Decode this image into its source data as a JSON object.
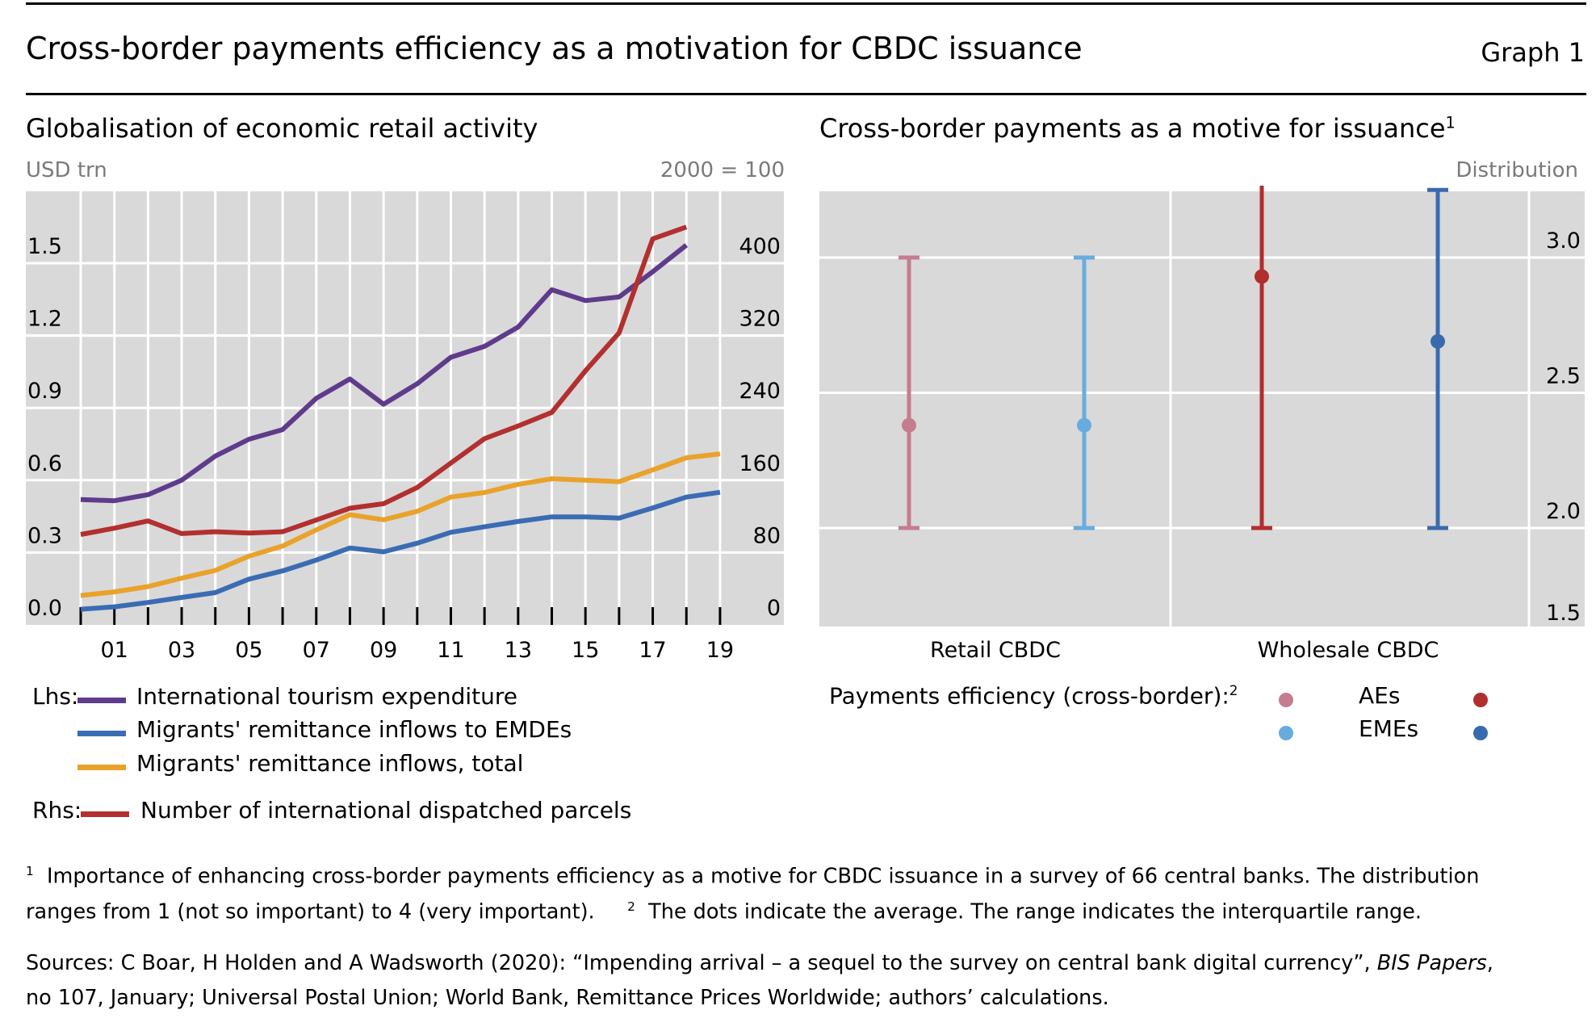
{
  "header": {
    "title": "Cross-border payments efficiency as a motivation for CBDC issuance",
    "graph_number": "Graph 1"
  },
  "chart_data": [
    {
      "type": "line",
      "title": "Globalisation of economic retail activity",
      "ylabel_left": "USD trn",
      "ylabel_right": "2000 = 100",
      "x": [
        "2000",
        "2001",
        "2002",
        "2003",
        "2004",
        "2005",
        "2006",
        "2007",
        "2008",
        "2009",
        "2010",
        "2011",
        "2012",
        "2013",
        "2014",
        "2015",
        "2016",
        "2017",
        "2018",
        "2019"
      ],
      "xtick_labels": [
        "01",
        "03",
        "05",
        "07",
        "09",
        "11",
        "13",
        "15",
        "17",
        "19"
      ],
      "xtick_years": [
        "2001",
        "2003",
        "2005",
        "2007",
        "2009",
        "2011",
        "2013",
        "2015",
        "2017",
        "2019"
      ],
      "ylim_left": [
        0,
        1.8
      ],
      "ylim_right": [
        0,
        480
      ],
      "yticks_left": [
        "0.0",
        "0.3",
        "0.6",
        "0.9",
        "1.2",
        "1.5"
      ],
      "yticks_right": [
        "0",
        "80",
        "160",
        "240",
        "320",
        "400"
      ],
      "grid": true,
      "legend_position": "bottom",
      "series": [
        {
          "name": "International tourism expenditure",
          "axis": "left",
          "group": "Lhs:",
          "color": "#5f3b8c",
          "values": [
            0.52,
            0.515,
            0.54,
            0.6,
            0.7,
            0.77,
            0.81,
            0.94,
            1.02,
            0.915,
            1.0,
            1.11,
            1.155,
            1.235,
            1.39,
            1.345,
            1.36,
            1.465,
            1.575,
            null
          ]
        },
        {
          "name": "Migrants' remittance inflows to EMDEs",
          "axis": "left",
          "group": "Lhs:",
          "color": "#3a6cb3",
          "values": [
            0.065,
            0.075,
            0.093,
            0.114,
            0.134,
            0.19,
            0.224,
            0.269,
            0.319,
            0.303,
            0.339,
            0.384,
            0.407,
            0.429,
            0.448,
            0.448,
            0.443,
            0.485,
            0.53,
            0.55
          ]
        },
        {
          "name": "Migrants' remittance inflows, total",
          "axis": "left",
          "group": "Lhs:",
          "color": "#e9a22a",
          "values": [
            0.122,
            0.137,
            0.159,
            0.194,
            0.226,
            0.285,
            0.327,
            0.394,
            0.457,
            0.436,
            0.471,
            0.53,
            0.549,
            0.583,
            0.606,
            0.6,
            0.594,
            0.643,
            0.693,
            0.709
          ]
        },
        {
          "name": "Number of international dispatched parcels",
          "axis": "right",
          "group": "Rhs:",
          "color": "#b2302f",
          "values": [
            100,
            107,
            115,
            101,
            103,
            101.5,
            103,
            116,
            129,
            134,
            152,
            179,
            206,
            220,
            235,
            281,
            323,
            427,
            440,
            null
          ]
        }
      ]
    },
    {
      "type": "errorbar",
      "title": "Cross-border payments as a motive for issuance",
      "title_footnote": "1",
      "ylabel_right": "Distribution",
      "ylim": [
        1.5,
        4.5
      ],
      "yticks": [
        "1.5",
        "2.0",
        "2.5",
        "3.0",
        "3.5",
        "4.0"
      ],
      "grid": true,
      "categories": [
        "Retail CBDC",
        "Wholesale CBDC"
      ],
      "legend_label": "Payments efficiency (cross-border):",
      "legend_footnote": "2",
      "legend_position": "bottom",
      "series": [
        {
          "name": "AEs",
          "category": "Retail CBDC",
          "color": "#c47d8e",
          "mean": 2.38,
          "q1": 2.0,
          "q3": 3.0
        },
        {
          "name": "EMEs",
          "category": "Retail CBDC",
          "color": "#68acdf",
          "mean": 2.38,
          "q1": 2.0,
          "q3": 3.0
        },
        {
          "name": "AEs",
          "category": "Wholesale CBDC",
          "color": "#b22d2d",
          "mean": 2.93,
          "q1": 2.0,
          "q3": 4.0
        },
        {
          "name": "EMEs",
          "category": "Wholesale CBDC",
          "color": "#3a6aae",
          "mean": 2.69,
          "q1": 2.0,
          "q3": 3.25
        }
      ]
    }
  ],
  "legend_left": {
    "lhs_label": "Lhs:",
    "rhs_label": "Rhs:"
  },
  "legend_right": {
    "label": "Payments efficiency (cross-border):",
    "sup": "2",
    "rows": [
      {
        "label": "AEs",
        "retail_color": "#c47d8e",
        "wholesale_color": "#b22d2d"
      },
      {
        "label": "EMEs",
        "retail_color": "#68acdf",
        "wholesale_color": "#3a6aae"
      }
    ]
  },
  "footnotes": {
    "note1_num": "1",
    "note1_line1": "Importance of enhancing cross-border payments efficiency as a motive for CBDC issuance in a survey of 66 central banks. The distribution",
    "note1_line2": "ranges from 1 (not so important) to 4 (very important).",
    "note2_num": "2",
    "note2_text": "The dots indicate the average. The range indicates the interquartile range.",
    "sources_line1_a": "Sources: C Boar, H Holden and A Wadsworth (2020): “Impending arrival – a sequel to the survey on central bank digital currency”,",
    "sources_line1_italic": "BIS Papers",
    "sources_line1_b": ",",
    "sources_line2": "no 107, January; Universal Postal Union; World Bank, Remittance Prices Worldwide; authors’ calculations."
  }
}
